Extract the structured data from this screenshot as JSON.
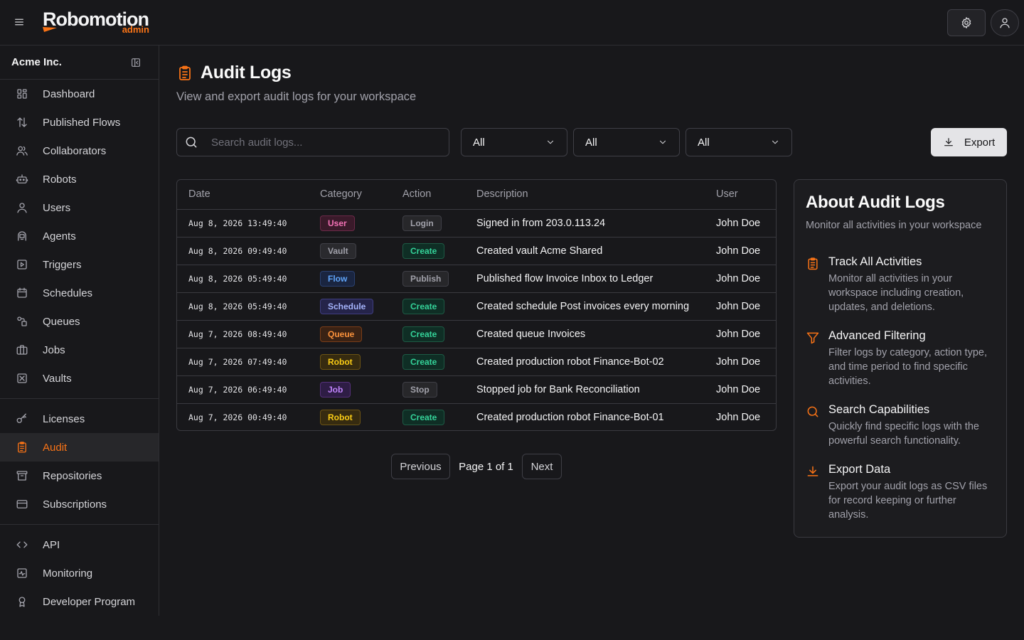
{
  "app": {
    "logo": "Robomotion",
    "logo_sub": "admin"
  },
  "sidebar": {
    "org": "Acme Inc.",
    "groups": [
      [
        {
          "label": "Dashboard",
          "icon": "dashboard-icon"
        },
        {
          "label": "Published Flows",
          "icon": "arrows-updown-icon"
        },
        {
          "label": "Collaborators",
          "icon": "users-group-icon"
        },
        {
          "label": "Robots",
          "icon": "robot-icon"
        },
        {
          "label": "Users",
          "icon": "user-icon"
        },
        {
          "label": "Agents",
          "icon": "agent-icon"
        },
        {
          "label": "Triggers",
          "icon": "play-square-icon"
        },
        {
          "label": "Schedules",
          "icon": "calendar-icon"
        },
        {
          "label": "Queues",
          "icon": "queue-icon"
        },
        {
          "label": "Jobs",
          "icon": "briefcase-icon"
        },
        {
          "label": "Vaults",
          "icon": "vault-icon"
        }
      ],
      [
        {
          "label": "Licenses",
          "icon": "key-icon"
        },
        {
          "label": "Audit",
          "icon": "clipboard-icon",
          "active": true
        },
        {
          "label": "Repositories",
          "icon": "archive-icon"
        },
        {
          "label": "Subscriptions",
          "icon": "credit-card-icon"
        }
      ],
      [
        {
          "label": "API",
          "icon": "code-icon"
        },
        {
          "label": "Monitoring",
          "icon": "activity-icon"
        },
        {
          "label": "Developer Program",
          "icon": "award-icon"
        }
      ]
    ]
  },
  "page": {
    "title": "Audit Logs",
    "subtitle": "View and export audit logs for your workspace"
  },
  "filters": {
    "search_placeholder": "Search audit logs...",
    "selects": [
      "All",
      "All",
      "All"
    ],
    "export_label": "Export"
  },
  "table": {
    "headers": [
      "Date",
      "Category",
      "Action",
      "Description",
      "User"
    ],
    "rows": [
      {
        "date": "Aug 8, 2026 13:49:40",
        "category": "User",
        "action": "Login",
        "description": "Signed in from 203.0.113.24",
        "user": "John Doe"
      },
      {
        "date": "Aug 8, 2026 09:49:40",
        "category": "Vault",
        "action": "Create",
        "description": "Created vault Acme Shared",
        "user": "John Doe"
      },
      {
        "date": "Aug 8, 2026 05:49:40",
        "category": "Flow",
        "action": "Publish",
        "description": "Published flow Invoice Inbox to Ledger",
        "user": "John Doe"
      },
      {
        "date": "Aug 8, 2026 05:49:40",
        "category": "Schedule",
        "action": "Create",
        "description": "Created schedule Post invoices every morning",
        "user": "John Doe"
      },
      {
        "date": "Aug 7, 2026 08:49:40",
        "category": "Queue",
        "action": "Create",
        "description": "Created queue Invoices",
        "user": "John Doe"
      },
      {
        "date": "Aug 7, 2026 07:49:40",
        "category": "Robot",
        "action": "Create",
        "description": "Created production robot Finance-Bot-02",
        "user": "John Doe"
      },
      {
        "date": "Aug 7, 2026 06:49:40",
        "category": "Job",
        "action": "Stop",
        "description": "Stopped job for Bank Reconciliation",
        "user": "John Doe"
      },
      {
        "date": "Aug 7, 2026 00:49:40",
        "category": "Robot",
        "action": "Create",
        "description": "Created production robot Finance-Bot-01",
        "user": "John Doe"
      }
    ]
  },
  "pagination": {
    "previous": "Previous",
    "label": "Page 1 of 1",
    "next": "Next"
  },
  "about": {
    "title": "About Audit Logs",
    "subtitle": "Monitor all activities in your workspace",
    "features": [
      {
        "title": "Track All Activities",
        "desc": "Monitor all activities in your workspace including creation, updates, and deletions.",
        "icon": "clipboard-icon"
      },
      {
        "title": "Advanced Filtering",
        "desc": "Filter logs by category, action type, and time period to find specific activities.",
        "icon": "filter-icon"
      },
      {
        "title": "Search Capabilities",
        "desc": "Quickly find specific logs with the powerful search functionality.",
        "icon": "search-icon"
      },
      {
        "title": "Export Data",
        "desc": "Export your audit logs as CSV files for record keeping or further analysis.",
        "icon": "download-icon"
      }
    ]
  },
  "colors": {
    "accent": "#f97316",
    "background": "#18181b"
  }
}
